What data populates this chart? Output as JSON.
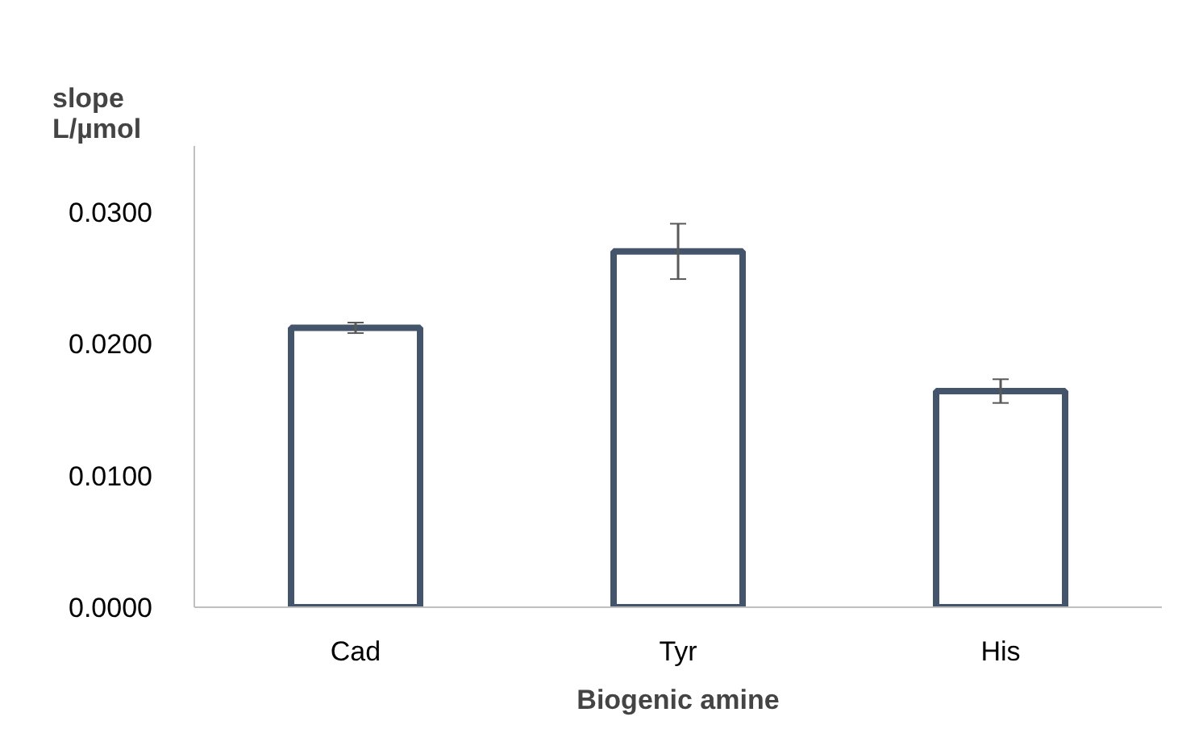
{
  "chart_data": {
    "type": "bar",
    "xlabel": "Biogenic amine",
    "ylabel": "slope L/µmol",
    "categories": [
      "Cad",
      "Tyr",
      "His"
    ],
    "values": [
      0.0212,
      0.027,
      0.0164
    ],
    "errors": [
      0.0004,
      0.0021,
      0.0009
    ],
    "color": "#44546a",
    "ylim": [
      0,
      0.035
    ],
    "yticks": [
      {
        "value": 0,
        "label": "0.0000"
      },
      {
        "value": 0.01,
        "label": "0.0100"
      },
      {
        "value": 0.02,
        "label": "0.0200"
      },
      {
        "value": 0.03,
        "label": "0.0300"
      }
    ],
    "grid": false
  }
}
